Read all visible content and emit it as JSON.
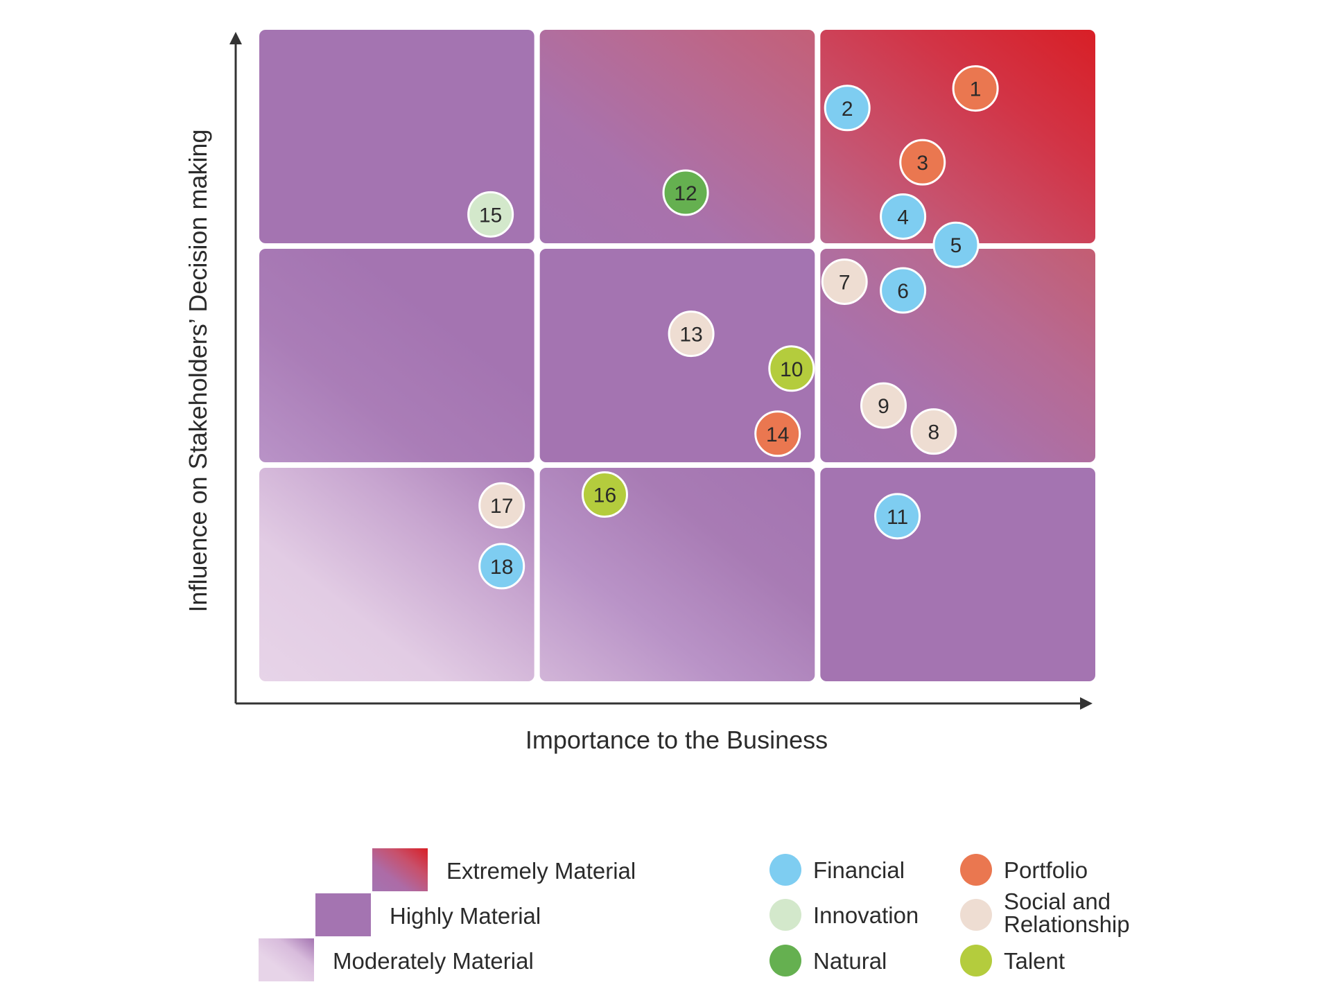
{
  "chart_data": {
    "type": "scatter",
    "title": "",
    "xlabel": "Importance to the Business",
    "ylabel": "Influence on Stakeholders’ Decision making",
    "xlim": [
      0,
      3
    ],
    "ylim": [
      0,
      3
    ],
    "grid": {
      "columns": 3,
      "rows": 3
    },
    "materiality_levels": [
      {
        "label": "Extremely Material"
      },
      {
        "label": "Highly Material"
      },
      {
        "label": "Moderately Material"
      }
    ],
    "categories": [
      {
        "name": "Financial",
        "color": "#7ecdf1"
      },
      {
        "name": "Portfolio",
        "color": "#ea7750"
      },
      {
        "name": "Innovation",
        "color": "#d3e8cb"
      },
      {
        "name": "Social and Relationship",
        "lines": [
          "Social and",
          "Relationship"
        ],
        "color": "#eeddd2"
      },
      {
        "name": "Natural",
        "color": "#65b050"
      },
      {
        "name": "Talent",
        "color": "#b4cc3d"
      }
    ],
    "points": [
      {
        "id": "1",
        "category": "Portfolio",
        "x": 2.57,
        "y": 2.73
      },
      {
        "id": "2",
        "category": "Financial",
        "x": 2.11,
        "y": 2.64
      },
      {
        "id": "3",
        "category": "Portfolio",
        "x": 2.38,
        "y": 2.39
      },
      {
        "id": "4",
        "category": "Financial",
        "x": 2.31,
        "y": 2.14
      },
      {
        "id": "5",
        "category": "Financial",
        "x": 2.5,
        "y": 2.01
      },
      {
        "id": "6",
        "category": "Financial",
        "x": 2.31,
        "y": 1.8
      },
      {
        "id": "7",
        "category": "Social and Relationship",
        "x": 2.1,
        "y": 1.84
      },
      {
        "id": "8",
        "category": "Social and Relationship",
        "x": 2.42,
        "y": 1.15
      },
      {
        "id": "9",
        "category": "Social and Relationship",
        "x": 2.24,
        "y": 1.27
      },
      {
        "id": "10",
        "category": "Talent",
        "x": 1.91,
        "y": 1.44
      },
      {
        "id": "11",
        "category": "Financial",
        "x": 2.29,
        "y": 0.76
      },
      {
        "id": "12",
        "category": "Natural",
        "x": 1.53,
        "y": 2.25
      },
      {
        "id": "13",
        "category": "Social and Relationship",
        "x": 1.55,
        "y": 1.6
      },
      {
        "id": "14",
        "category": "Portfolio",
        "x": 1.86,
        "y": 1.14
      },
      {
        "id": "15",
        "category": "Innovation",
        "x": 0.83,
        "y": 2.15
      },
      {
        "id": "16",
        "category": "Talent",
        "x": 1.24,
        "y": 0.86
      },
      {
        "id": "17",
        "category": "Social and Relationship",
        "x": 0.87,
        "y": 0.81
      },
      {
        "id": "18",
        "category": "Financial",
        "x": 0.87,
        "y": 0.53
      }
    ]
  },
  "colors": {
    "extreme": "#d81f26",
    "high": "#a474b1",
    "moderate": "#e7d4e8",
    "axis": "#333333"
  }
}
